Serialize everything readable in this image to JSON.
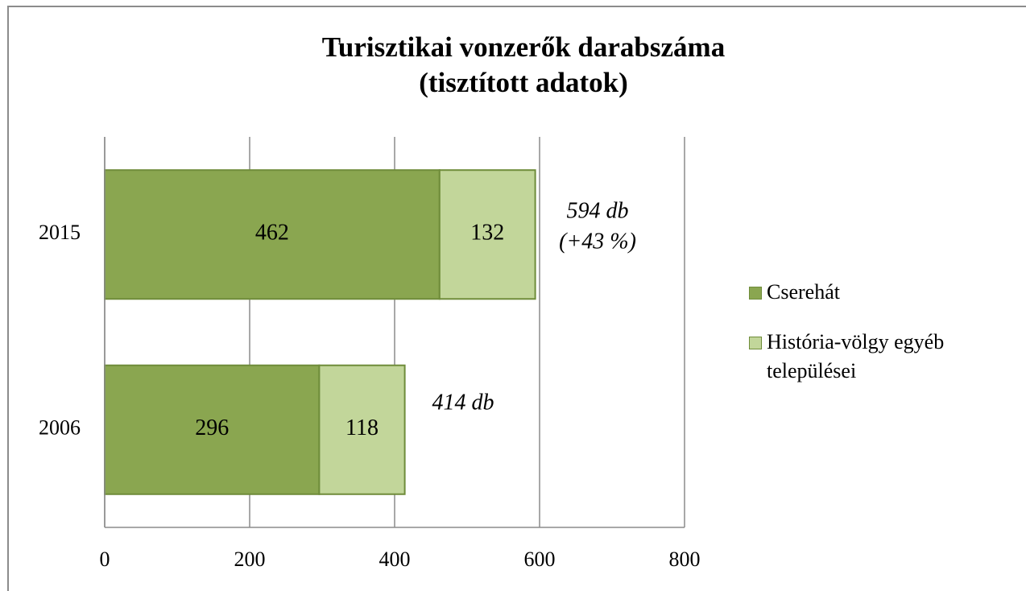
{
  "chart_data": {
    "type": "stacked-bar-horizontal",
    "title": "Turisztikai vonzerők darabszáma",
    "subtitle": "(tisztított adatok)",
    "categories": [
      "2015",
      "2006"
    ],
    "series": [
      {
        "name": "Cserehát",
        "color": "#8aa650",
        "values": [
          462,
          296
        ]
      },
      {
        "name": "História-völgy egyéb települései",
        "color": "#c2d69a",
        "values": [
          132,
          118
        ]
      }
    ],
    "annotations": [
      "594 db",
      "(+43 %)",
      "414 db"
    ],
    "xlim": [
      0,
      800
    ],
    "xticks": [
      0,
      200,
      400,
      600,
      800
    ],
    "grid": true,
    "legend": "right"
  }
}
